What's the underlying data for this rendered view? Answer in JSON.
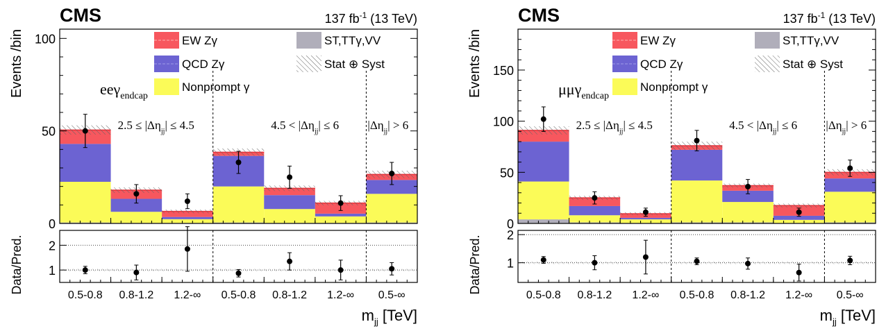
{
  "colors": {
    "ew": "#f7575e",
    "ew_line": "#e8333a",
    "qcd": "#6c63d2",
    "qcd_line": "#4f46b8",
    "nonprompt": "#fbfb58",
    "st": "#b0aeba"
  },
  "chart_data": [
    {
      "type": "bar",
      "stacked": true,
      "channel": "ee",
      "experiment": "CMS",
      "lumi_label": "137 fb",
      "lumi_exp": "-1",
      "energy_label": " (13 TeV)",
      "ylabel": "Events /bin",
      "ratio_ylabel": "Data/Pred.",
      "xlabel_main": "m",
      "xlabel_sub": "jj",
      "xlabel_unit": " [TeV]",
      "channel_label_main": "eeγ",
      "channel_label_sub": "endcap",
      "ylim": [
        0,
        105
      ],
      "yticks": [
        0,
        50,
        100
      ],
      "ratio_ylim": [
        0.5,
        2.6
      ],
      "ratio_yticks": [
        1,
        2
      ],
      "categories": [
        "0.5-0.8",
        "0.8-1.2",
        "1.2-∞",
        "0.5-0.8",
        "0.8-1.2",
        "1.2-∞",
        "0.5-∞"
      ],
      "region_labels": [
        {
          "text": "2.5 ≤ |Δη",
          "sub": "jj",
          "post": "| ≤ 4.5",
          "bin": 1
        },
        {
          "text": "4.5 < |Δη",
          "sub": "jj",
          "post": "| ≤ 6",
          "bin": 4
        },
        {
          "text": "|Δη",
          "sub": "jj",
          "post": "| > 6",
          "bin": 6
        }
      ],
      "region_dividers_after_bin": [
        2,
        5
      ],
      "series": [
        {
          "name": "ST,TTγ,VV",
          "values": [
            0.5,
            0.3,
            0.3,
            0.5,
            0.3,
            0.3,
            0.5
          ]
        },
        {
          "name": "Nonprompt γ",
          "values": [
            22,
            6,
            2,
            19.5,
            7.5,
            3.5,
            15.5
          ]
        },
        {
          "name": "QCD Zγ",
          "values": [
            20.5,
            7,
            1.2,
            16.5,
            7.5,
            1.5,
            7.5
          ]
        },
        {
          "name": "EW Zγ",
          "values": [
            7.5,
            4.7,
            3,
            2,
            3.7,
            5.7,
            3
          ]
        }
      ],
      "total_unc": [
        2.5,
        1.5,
        1.0,
        2.0,
        1.5,
        1.2,
        2.0
      ],
      "data": {
        "values": [
          50,
          16,
          12,
          33,
          25,
          11,
          27
        ],
        "err": [
          9,
          5,
          4,
          6,
          6,
          4,
          6
        ]
      },
      "ratio": {
        "values": [
          1.0,
          0.9,
          1.85,
          0.87,
          1.35,
          1.0,
          1.05
        ],
        "err": [
          0.15,
          0.3,
          0.9,
          0.15,
          0.35,
          0.4,
          0.25
        ]
      },
      "legend": [
        {
          "label": "EW Zγ",
          "kind": "ew"
        },
        {
          "label": "ST,TTγ,VV",
          "kind": "st"
        },
        {
          "label": "QCD Zγ",
          "kind": "qcd"
        },
        {
          "label": "Stat ⊕ Syst",
          "kind": "hatch"
        },
        {
          "label": "Nonprompt γ",
          "kind": "nonprompt"
        }
      ]
    },
    {
      "type": "bar",
      "stacked": true,
      "channel": "mumu",
      "experiment": "CMS",
      "lumi_label": "137 fb",
      "lumi_exp": "-1",
      "energy_label": " (13 TeV)",
      "ylabel": "Events /bin",
      "ratio_ylabel": "Data/Pred.",
      "xlabel_main": "m",
      "xlabel_sub": "jj",
      "xlabel_unit": " [TeV]",
      "channel_label_main": "μμγ",
      "channel_label_sub": "endcap",
      "ylim": [
        0,
        190
      ],
      "yticks": [
        0,
        50,
        100,
        150
      ],
      "ratio_ylim": [
        0.3,
        2.15
      ],
      "ratio_yticks": [
        1,
        2
      ],
      "categories": [
        "0.5-0.8",
        "0.8-1.2",
        "1.2-∞",
        "0.5-0.8",
        "0.8-1.2",
        "1.2-∞",
        "0.5-∞"
      ],
      "region_labels": [
        {
          "text": "2.5 ≤ |Δη",
          "sub": "jj",
          "post": "| ≤ 4.5",
          "bin": 1
        },
        {
          "text": "4.5 < |Δη",
          "sub": "jj",
          "post": "| ≤ 6",
          "bin": 4
        },
        {
          "text": "|Δη",
          "sub": "jj",
          "post": "| > 6",
          "bin": 6
        }
      ],
      "region_dividers_after_bin": [
        2,
        5
      ],
      "series": [
        {
          "name": "ST,TTγ,VV",
          "values": [
            4,
            1,
            0.5,
            1,
            1,
            0.5,
            1
          ]
        },
        {
          "name": "Nonprompt γ",
          "values": [
            37,
            7,
            3.5,
            41,
            20,
            3,
            30
          ]
        },
        {
          "name": "QCD Zγ",
          "values": [
            39,
            9,
            1.5,
            30,
            11,
            4,
            13
          ]
        },
        {
          "name": "EW Zγ",
          "values": [
            11,
            8,
            4,
            4,
            5,
            10,
            6
          ]
        }
      ],
      "total_unc": [
        4,
        2,
        1.5,
        4,
        2,
        2,
        3
      ],
      "data": {
        "values": [
          102,
          25,
          11,
          81,
          36,
          11,
          54
        ],
        "err": [
          12,
          6,
          4,
          10,
          7,
          4,
          8
        ]
      },
      "ratio": {
        "values": [
          1.1,
          1.0,
          1.2,
          1.05,
          0.97,
          0.65,
          1.08
        ],
        "err": [
          0.12,
          0.25,
          0.6,
          0.12,
          0.2,
          0.3,
          0.15
        ]
      },
      "legend": [
        {
          "label": "EW Zγ",
          "kind": "ew"
        },
        {
          "label": "ST,TTγ,VV",
          "kind": "st"
        },
        {
          "label": "QCD Zγ",
          "kind": "qcd"
        },
        {
          "label": "Stat ⊕ Syst",
          "kind": "hatch"
        },
        {
          "label": "Nonprompt γ",
          "kind": "nonprompt"
        }
      ]
    }
  ]
}
